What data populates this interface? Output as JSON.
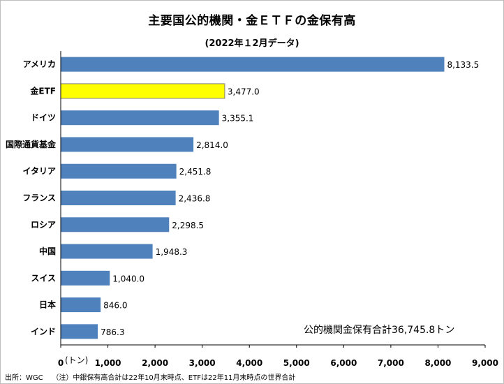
{
  "chart_data": {
    "type": "bar",
    "orientation": "horizontal",
    "title": "主要国公的機関・金ＥＴＦの金保有高",
    "subtitle": "(2022年１2月データ)",
    "categories": [
      "アメリカ",
      "金ETF",
      "ドイツ",
      "国際通貨基金",
      "イタリア",
      "フランス",
      "ロシア",
      "中国",
      "スイス",
      "日本",
      "インド"
    ],
    "values": [
      8133.5,
      3477.0,
      3355.1,
      2814.0,
      2451.8,
      2436.8,
      2298.5,
      1948.3,
      1040.0,
      846.0,
      786.3
    ],
    "value_labels": [
      "8,133.5",
      "3,477.0",
      "3,355.1",
      "2,814.0",
      "2,451.8",
      "2,436.8",
      "2,298.5",
      "1,948.3",
      "1,040.0",
      "846.0",
      "786.3"
    ],
    "highlight_index": 1,
    "colors": {
      "bar": "#4f81bd",
      "highlight": "#ffff00",
      "highlight_border": "#7f7f7f"
    },
    "xlim": [
      0,
      9000
    ],
    "x_ticks": [
      0,
      1000,
      2000,
      3000,
      4000,
      5000,
      6000,
      7000,
      8000,
      9000
    ],
    "x_tick_labels": [
      "0",
      "1,000",
      "2,000",
      "3,000",
      "4,000",
      "5,000",
      "6,000",
      "7,000",
      "8,000",
      "9,000"
    ],
    "x_unit": "(トン)",
    "grid": false,
    "annotation": "公的機関金保有合計36,745.8トン"
  },
  "footer": {
    "source": "出所：WGC",
    "note": "（注）中銀保有高合計は22年10月末時点、ETFは22年11月末時点の世界合計"
  }
}
